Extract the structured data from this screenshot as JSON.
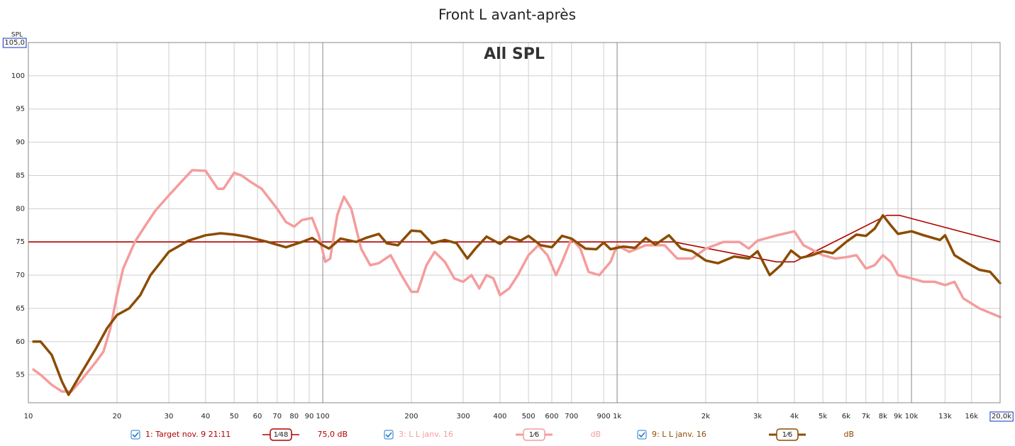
{
  "chart_data": {
    "type": "line",
    "title": "Front L avant-après",
    "subtitle": "All SPL",
    "y_label": "SPL",
    "xscale": "log",
    "grid": true,
    "xlim": [
      10,
      20000
    ],
    "ylim": [
      50.8,
      105
    ],
    "xticks": [
      10,
      20,
      30,
      40,
      50,
      60,
      70,
      80,
      90,
      100,
      200,
      300,
      400,
      500,
      600,
      700,
      900,
      {
        "value": 1000,
        "label": "1k"
      },
      {
        "value": 2000,
        "label": "2k"
      },
      {
        "value": 3000,
        "label": "3k"
      },
      {
        "value": 4000,
        "label": "4k"
      },
      {
        "value": 5000,
        "label": "5k"
      },
      {
        "value": 6000,
        "label": "6k"
      },
      {
        "value": 7000,
        "label": "7k"
      },
      {
        "value": 8000,
        "label": "8k"
      },
      {
        "value": 9000,
        "label": "9k"
      },
      {
        "value": 10000,
        "label": "10k"
      },
      {
        "value": 13000,
        "label": "13k"
      },
      {
        "value": 16000,
        "label": "16k"
      },
      {
        "value": 20000,
        "label": "20,0k"
      }
    ],
    "yticks": [
      55,
      60,
      65,
      70,
      75,
      80,
      85,
      90,
      95,
      100,
      {
        "value": 105,
        "label": "105,0"
      }
    ],
    "series": [
      {
        "name": "1: Target nov. 9 21:11",
        "smoothing": "1⁄48",
        "offset": "75,0 dB",
        "color": "#b00000",
        "width": 1.6,
        "x": [
          10,
          1560,
          3480,
          4000,
          8240,
          9100,
          20000
        ],
        "values": [
          75,
          75,
          72,
          72,
          79,
          79,
          75
        ]
      },
      {
        "name": "3: L L janv. 16",
        "smoothing": "1⁄6",
        "offset": "dB",
        "color": "#f59c9c",
        "width": 3.5,
        "x": [
          10.4,
          11,
          12,
          13,
          14,
          15,
          17,
          18,
          19,
          20,
          21,
          23,
          25,
          27,
          30,
          33,
          36,
          40,
          44,
          46,
          50,
          53,
          57,
          62,
          70,
          75,
          80,
          85,
          92,
          97,
          102,
          106,
          112,
          118,
          125,
          135,
          145,
          155,
          170,
          185,
          200,
          210,
          225,
          240,
          260,
          280,
          300,
          320,
          340,
          360,
          380,
          400,
          430,
          460,
          500,
          540,
          580,
          620,
          650,
          700,
          750,
          800,
          870,
          950,
          1000,
          1100,
          1250,
          1450,
          1600,
          1800,
          2000,
          2300,
          2600,
          2800,
          3000,
          3500,
          4000,
          4300,
          5000,
          5500,
          6000,
          6500,
          7000,
          7500,
          8000,
          8500,
          9000,
          10000,
          11000,
          12000,
          13000,
          14000,
          15000,
          17000,
          20000
        ],
        "values": [
          55.8,
          55,
          53.5,
          52.5,
          52.5,
          54,
          57,
          58.5,
          62,
          67,
          71,
          75,
          77.5,
          79.7,
          82,
          84,
          85.8,
          85.7,
          83,
          83,
          85.4,
          85,
          84,
          83,
          80,
          78,
          77.3,
          78.3,
          78.6,
          76,
          72,
          72.5,
          79,
          81.8,
          80,
          74,
          71.5,
          71.8,
          73,
          70,
          67.5,
          67.5,
          71.5,
          73.5,
          72,
          69.5,
          69,
          70,
          68,
          70,
          69.5,
          67,
          68,
          70,
          73,
          74.5,
          73,
          70,
          72,
          75.5,
          74,
          70.5,
          70,
          72,
          74.5,
          73.5,
          74.5,
          74.5,
          72.5,
          72.5,
          74,
          75,
          75,
          74,
          75.2,
          76,
          76.6,
          74.5,
          73,
          72.5,
          72.7,
          73,
          71,
          71.5,
          73,
          72,
          70,
          69.5,
          69,
          69,
          68.5,
          69,
          66.5,
          65,
          63.7
        ]
      },
      {
        "name": "9: L L janv. 16",
        "smoothing": "1⁄6",
        "offset": "dB",
        "color": "#8b4c00",
        "width": 3.5,
        "x": [
          10.4,
          11,
          12,
          13,
          13.7,
          15,
          17,
          18.5,
          20,
          22,
          24,
          26,
          30,
          35,
          40,
          45,
          50,
          55,
          65,
          75,
          85,
          92,
          100,
          105,
          115,
          130,
          140,
          155,
          165,
          180,
          200,
          215,
          235,
          260,
          285,
          310,
          330,
          360,
          400,
          430,
          470,
          500,
          550,
          600,
          650,
          700,
          780,
          850,
          900,
          950,
          1050,
          1150,
          1250,
          1350,
          1500,
          1650,
          1800,
          2000,
          2200,
          2500,
          2800,
          3000,
          3300,
          3600,
          3900,
          4200,
          4600,
          5000,
          5400,
          6000,
          6500,
          7000,
          7500,
          8000,
          8500,
          9000,
          10000,
          11000,
          12500,
          13000,
          14000,
          15500,
          17000,
          18500,
          20000
        ],
        "values": [
          60,
          60,
          58,
          54,
          52,
          55,
          59,
          62,
          64,
          65,
          67,
          70,
          73.5,
          75.2,
          76,
          76.3,
          76.1,
          75.8,
          75,
          74.2,
          75,
          75.6,
          74.5,
          74,
          75.5,
          75,
          75.6,
          76.2,
          74.8,
          74.5,
          76.7,
          76.6,
          74.8,
          75.3,
          74.8,
          72.5,
          74,
          75.8,
          74.7,
          75.8,
          75.2,
          75.9,
          74.5,
          74.2,
          75.9,
          75.5,
          74,
          73.9,
          74.9,
          73.9,
          74.3,
          74.1,
          75.6,
          74.6,
          76,
          74,
          73.6,
          72.2,
          71.8,
          72.8,
          72.5,
          73.6,
          70,
          71.5,
          73.7,
          72.6,
          73,
          73.6,
          73.3,
          75,
          76.1,
          75.9,
          77,
          79,
          77.5,
          76.2,
          76.6,
          76,
          75.3,
          76,
          73,
          71.8,
          70.8,
          70.5,
          68.8
        ]
      }
    ]
  }
}
